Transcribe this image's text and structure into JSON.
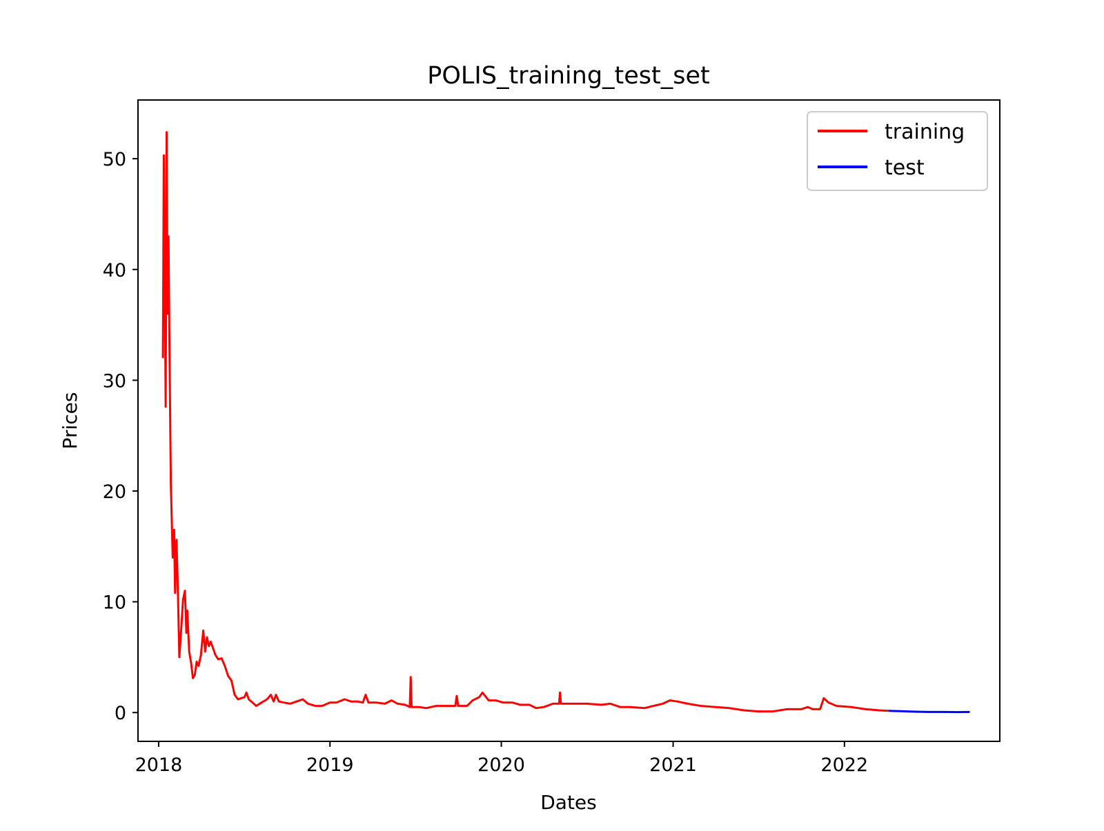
{
  "chart_data": {
    "type": "line",
    "title": "POLIS_training_test_set",
    "xlabel": "Dates",
    "ylabel": "Prices",
    "x_ticks": [
      "2018",
      "2019",
      "2020",
      "2021",
      "2022"
    ],
    "y_ticks": [
      "0",
      "10",
      "20",
      "30",
      "40",
      "50"
    ],
    "xlim": [
      "2017-11-18",
      "2022-11-28"
    ],
    "ylim": [
      -2.6,
      55.3
    ],
    "grid": false,
    "legend_position": "top-right",
    "series": [
      {
        "name": "training",
        "color": "#ff0000",
        "points": [
          [
            "2018-01-10",
            32.0
          ],
          [
            "2018-01-12",
            50.3
          ],
          [
            "2018-01-14",
            40.5
          ],
          [
            "2018-01-16",
            27.6
          ],
          [
            "2018-01-18",
            52.4
          ],
          [
            "2018-01-20",
            36.0
          ],
          [
            "2018-01-22",
            43.0
          ],
          [
            "2018-01-24",
            33.0
          ],
          [
            "2018-01-27",
            20.7
          ],
          [
            "2018-01-31",
            14.0
          ],
          [
            "2018-02-03",
            16.5
          ],
          [
            "2018-02-05",
            10.8
          ],
          [
            "2018-02-08",
            15.6
          ],
          [
            "2018-02-11",
            11.0
          ],
          [
            "2018-02-14",
            5.0
          ],
          [
            "2018-02-18",
            7.5
          ],
          [
            "2018-02-22",
            10.2
          ],
          [
            "2018-02-26",
            11.0
          ],
          [
            "2018-03-01",
            7.2
          ],
          [
            "2018-03-03",
            9.2
          ],
          [
            "2018-03-07",
            5.5
          ],
          [
            "2018-03-11",
            4.5
          ],
          [
            "2018-03-15",
            3.1
          ],
          [
            "2018-03-19",
            3.4
          ],
          [
            "2018-03-23",
            4.6
          ],
          [
            "2018-03-27",
            4.2
          ],
          [
            "2018-04-01",
            5.2
          ],
          [
            "2018-04-06",
            7.4
          ],
          [
            "2018-04-10",
            5.5
          ],
          [
            "2018-04-14",
            6.8
          ],
          [
            "2018-04-18",
            6.0
          ],
          [
            "2018-04-22",
            6.4
          ],
          [
            "2018-04-27",
            5.8
          ],
          [
            "2018-05-02",
            5.2
          ],
          [
            "2018-05-08",
            4.8
          ],
          [
            "2018-05-15",
            4.9
          ],
          [
            "2018-05-22",
            4.2
          ],
          [
            "2018-05-29",
            3.3
          ],
          [
            "2018-06-05",
            2.9
          ],
          [
            "2018-06-12",
            1.6
          ],
          [
            "2018-06-19",
            1.2
          ],
          [
            "2018-06-26",
            1.3
          ],
          [
            "2018-07-03",
            1.4
          ],
          [
            "2018-07-07",
            1.8
          ],
          [
            "2018-07-12",
            1.2
          ],
          [
            "2018-07-20",
            0.9
          ],
          [
            "2018-07-28",
            0.6
          ],
          [
            "2018-08-08",
            0.9
          ],
          [
            "2018-08-20",
            1.2
          ],
          [
            "2018-08-28",
            1.6
          ],
          [
            "2018-09-03",
            1.0
          ],
          [
            "2018-09-08",
            1.6
          ],
          [
            "2018-09-14",
            1.0
          ],
          [
            "2018-09-25",
            0.9
          ],
          [
            "2018-10-08",
            0.8
          ],
          [
            "2018-10-22",
            1.0
          ],
          [
            "2018-11-04",
            1.2
          ],
          [
            "2018-11-15",
            0.8
          ],
          [
            "2018-12-01",
            0.6
          ],
          [
            "2018-12-15",
            0.6
          ],
          [
            "2019-01-01",
            0.9
          ],
          [
            "2019-01-15",
            0.9
          ],
          [
            "2019-02-01",
            1.2
          ],
          [
            "2019-02-15",
            1.0
          ],
          [
            "2019-03-01",
            1.0
          ],
          [
            "2019-03-12",
            0.9
          ],
          [
            "2019-03-18",
            1.6
          ],
          [
            "2019-03-24",
            0.9
          ],
          [
            "2019-04-10",
            0.9
          ],
          [
            "2019-04-28",
            0.8
          ],
          [
            "2019-05-12",
            1.1
          ],
          [
            "2019-05-25",
            0.8
          ],
          [
            "2019-06-10",
            0.7
          ],
          [
            "2019-06-20",
            0.5
          ],
          [
            "2019-06-22",
            3.2
          ],
          [
            "2019-06-24",
            0.5
          ],
          [
            "2019-07-10",
            0.5
          ],
          [
            "2019-07-25",
            0.4
          ],
          [
            "2019-08-15",
            0.6
          ],
          [
            "2019-09-10",
            0.6
          ],
          [
            "2019-09-25",
            0.6
          ],
          [
            "2019-09-28",
            1.5
          ],
          [
            "2019-10-01",
            0.6
          ],
          [
            "2019-10-20",
            0.6
          ],
          [
            "2019-11-01",
            1.1
          ],
          [
            "2019-11-15",
            1.4
          ],
          [
            "2019-11-22",
            1.8
          ],
          [
            "2019-12-05",
            1.1
          ],
          [
            "2019-12-20",
            1.1
          ],
          [
            "2020-01-05",
            0.9
          ],
          [
            "2020-01-25",
            0.9
          ],
          [
            "2020-02-10",
            0.7
          ],
          [
            "2020-03-01",
            0.7
          ],
          [
            "2020-03-15",
            0.4
          ],
          [
            "2020-04-01",
            0.5
          ],
          [
            "2020-04-20",
            0.8
          ],
          [
            "2020-05-03",
            0.8
          ],
          [
            "2020-05-05",
            1.8
          ],
          [
            "2020-05-07",
            0.8
          ],
          [
            "2020-06-01",
            0.8
          ],
          [
            "2020-07-01",
            0.8
          ],
          [
            "2020-08-01",
            0.7
          ],
          [
            "2020-08-20",
            0.8
          ],
          [
            "2020-09-10",
            0.5
          ],
          [
            "2020-10-01",
            0.5
          ],
          [
            "2020-11-01",
            0.4
          ],
          [
            "2020-11-20",
            0.6
          ],
          [
            "2020-12-10",
            0.8
          ],
          [
            "2020-12-25",
            1.1
          ],
          [
            "2021-01-10",
            1.0
          ],
          [
            "2021-02-01",
            0.8
          ],
          [
            "2021-03-01",
            0.6
          ],
          [
            "2021-04-01",
            0.5
          ],
          [
            "2021-05-01",
            0.4
          ],
          [
            "2021-06-01",
            0.2
          ],
          [
            "2021-07-01",
            0.1
          ],
          [
            "2021-08-01",
            0.1
          ],
          [
            "2021-09-01",
            0.3
          ],
          [
            "2021-10-01",
            0.3
          ],
          [
            "2021-10-15",
            0.5
          ],
          [
            "2021-10-25",
            0.3
          ],
          [
            "2021-11-10",
            0.3
          ],
          [
            "2021-11-18",
            1.3
          ],
          [
            "2021-11-28",
            0.9
          ],
          [
            "2021-12-15",
            0.6
          ],
          [
            "2022-01-15",
            0.5
          ],
          [
            "2022-02-15",
            0.3
          ],
          [
            "2022-03-15",
            0.2
          ],
          [
            "2022-04-05",
            0.15
          ]
        ]
      },
      {
        "name": "test",
        "color": "#0000ff",
        "points": [
          [
            "2022-04-05",
            0.15
          ],
          [
            "2022-05-01",
            0.12
          ],
          [
            "2022-06-01",
            0.08
          ],
          [
            "2022-07-01",
            0.05
          ],
          [
            "2022-08-01",
            0.05
          ],
          [
            "2022-09-01",
            0.04
          ],
          [
            "2022-09-25",
            0.05
          ]
        ]
      }
    ]
  }
}
